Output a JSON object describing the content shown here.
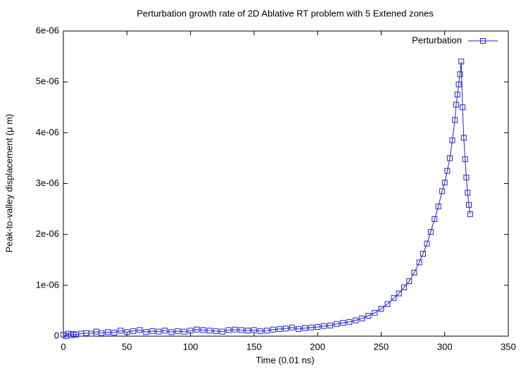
{
  "chart_data": {
    "type": "line",
    "title": "Perturbation growth rate of 2D Ablative RT problem with 5 Extened zones",
    "xlabel": "Time (0.01 ns)",
    "ylabel": "Peak-to-valley displacement (μ m)",
    "xlim": [
      0,
      350
    ],
    "xticks": [
      0,
      50,
      100,
      150,
      200,
      250,
      300,
      350
    ],
    "ylim": [
      0,
      6e-06
    ],
    "yticks": [
      0,
      {
        "value": 1e-06,
        "label": "1e-06"
      },
      {
        "value": 2e-06,
        "label": "2e-06"
      },
      {
        "value": 3e-06,
        "label": "3e-06"
      },
      {
        "value": 4e-06,
        "label": "4e-06"
      },
      {
        "value": 5e-06,
        "label": "5e-06"
      },
      {
        "value": 6e-06,
        "label": "6e-06"
      }
    ],
    "legend": "top-right",
    "x": [
      0,
      2,
      4,
      6,
      8,
      10,
      14,
      18,
      22,
      26,
      30,
      35,
      40,
      45,
      50,
      55,
      60,
      65,
      70,
      75,
      80,
      85,
      90,
      95,
      100,
      105,
      110,
      115,
      120,
      125,
      130,
      135,
      140,
      145,
      150,
      155,
      160,
      165,
      170,
      175,
      180,
      185,
      190,
      195,
      200,
      205,
      210,
      215,
      220,
      225,
      230,
      235,
      240,
      245,
      250,
      255,
      260,
      264,
      268,
      272,
      276,
      280,
      283,
      286,
      289,
      292,
      295,
      298,
      300,
      302,
      304,
      306,
      308,
      309,
      310,
      311,
      312,
      313,
      314,
      315,
      316,
      317,
      318,
      319,
      320
    ],
    "series": [
      {
        "name": "Perturbation",
        "color": "#2222cc",
        "values": [
          3e-08,
          0,
          5e-08,
          2e-08,
          4e-08,
          3e-08,
          5e-08,
          6e-08,
          5e-08,
          9e-08,
          6e-08,
          8e-08,
          7e-08,
          1.1e-07,
          8e-08,
          1e-07,
          1.2e-07,
          8e-08,
          1e-07,
          9e-08,
          1.1e-07,
          8e-08,
          1e-07,
          9e-08,
          1.1e-07,
          1.3e-07,
          1.2e-07,
          1.1e-07,
          1e-07,
          9e-08,
          1.2e-07,
          1.3e-07,
          1.2e-07,
          1.1e-07,
          1.2e-07,
          1e-07,
          1.1e-07,
          1.3e-07,
          1.4e-07,
          1.5e-07,
          1.7e-07,
          1.4e-07,
          1.6e-07,
          1.7e-07,
          1.8e-07,
          2e-07,
          2.1e-07,
          2.4e-07,
          2.6e-07,
          2.8e-07,
          3.1e-07,
          3.5e-07,
          4e-07,
          4.6e-07,
          5.4e-07,
          6.3e-07,
          7.5e-07,
          8.4e-07,
          9.6e-07,
          1.08e-06,
          1.25e-06,
          1.45e-06,
          1.62e-06,
          1.82e-06,
          2.05e-06,
          2.3e-06,
          2.55e-06,
          2.85e-06,
          3.02e-06,
          3.25e-06,
          3.5e-06,
          3.85e-06,
          4.25e-06,
          4.55e-06,
          4.75e-06,
          4.95e-06,
          5.15e-06,
          5.4e-06,
          4.5e-06,
          3.9e-06,
          3.48e-06,
          3.12e-06,
          2.82e-06,
          2.58e-06,
          2.4e-06
        ]
      }
    ]
  }
}
